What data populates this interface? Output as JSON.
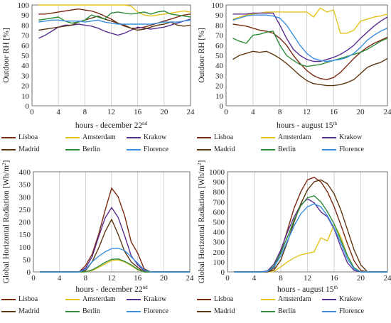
{
  "colors": {
    "Lisboa": "#7b2a12",
    "Amsterdam": "#e3c31b",
    "Krakow": "#5a2d91",
    "Madrid": "#5b3710",
    "Berlin": "#2e8b3a",
    "Florence": "#3a8fe0"
  },
  "legend_entries": [
    "Lisboa",
    "Amsterdam",
    "Krakow",
    "Madrid",
    "Berlin",
    "Florence"
  ],
  "chart_data": [
    {
      "type": "line",
      "xlabel": "hours - december 22",
      "xlabel_sup": "nd",
      "ylabel": "Outdoor RH [%]",
      "xlim": [
        0,
        24
      ],
      "ylim": [
        0,
        100
      ],
      "xticks": [
        "0",
        "4",
        "8",
        "12",
        "16",
        "20",
        "24"
      ],
      "yticks": [
        "0",
        "10",
        "20",
        "30",
        "40",
        "50",
        "60",
        "70",
        "80",
        "90",
        "100"
      ],
      "x": [
        1,
        2,
        3,
        4,
        5,
        6,
        7,
        8,
        9,
        10,
        11,
        12,
        13,
        14,
        15,
        16,
        17,
        18,
        19,
        20,
        21,
        22,
        23,
        24
      ],
      "series": [
        {
          "name": "Lisboa",
          "values": [
            91,
            91,
            92,
            93,
            94,
            95,
            96,
            95,
            94,
            92,
            89,
            86,
            82,
            79,
            77,
            77,
            78,
            80,
            82,
            84,
            86,
            88,
            90,
            91
          ]
        },
        {
          "name": "Amsterdam",
          "values": [
            100,
            100,
            100,
            100,
            100,
            100,
            100,
            100,
            100,
            100,
            100,
            100,
            100,
            100,
            99,
            93,
            90,
            89,
            90,
            91,
            92,
            93,
            94,
            93
          ]
        },
        {
          "name": "Krakow",
          "values": [
            67,
            70,
            74,
            78,
            80,
            80,
            81,
            80,
            79,
            77,
            74,
            72,
            70,
            72,
            75,
            78,
            77,
            76,
            77,
            78,
            80,
            82,
            84,
            86
          ]
        },
        {
          "name": "Madrid",
          "values": [
            75,
            76,
            77,
            78,
            79,
            80,
            83,
            85,
            87,
            89,
            86,
            84,
            82,
            80,
            77,
            75,
            76,
            78,
            80,
            81,
            83,
            80,
            79,
            80
          ]
        },
        {
          "name": "Berlin",
          "values": [
            85,
            86,
            87,
            88,
            84,
            82,
            83,
            85,
            90,
            88,
            86,
            92,
            93,
            92,
            91,
            92,
            93,
            91,
            93,
            94,
            91,
            90,
            89,
            88
          ]
        },
        {
          "name": "Florence",
          "values": [
            83,
            84,
            85,
            85,
            84,
            84,
            84,
            83,
            84,
            85,
            83,
            82,
            81,
            81,
            81,
            81,
            81,
            81,
            82,
            83,
            83,
            83,
            84,
            85
          ]
        }
      ]
    },
    {
      "type": "line",
      "xlabel": "hours - august 15",
      "xlabel_sup": "th",
      "ylabel": "Outdoor RH [%]",
      "xlim": [
        0,
        24
      ],
      "ylim": [
        0,
        100
      ],
      "xticks": [
        "0",
        "4",
        "8",
        "12",
        "16",
        "20",
        "24"
      ],
      "yticks": [
        "0",
        "10",
        "20",
        "30",
        "40",
        "50",
        "60",
        "70",
        "80",
        "90",
        "100"
      ],
      "x": [
        1,
        2,
        3,
        4,
        5,
        6,
        7,
        8,
        9,
        10,
        11,
        12,
        13,
        14,
        15,
        16,
        17,
        18,
        19,
        20,
        21,
        22,
        23,
        24
      ],
      "series": [
        {
          "name": "Lisboa",
          "values": [
            81,
            80,
            79,
            77,
            75,
            74,
            72,
            67,
            60,
            50,
            42,
            35,
            30,
            27,
            26,
            28,
            33,
            40,
            47,
            53,
            58,
            62,
            65,
            68
          ]
        },
        {
          "name": "Amsterdam",
          "values": [
            86,
            88,
            90,
            91,
            92,
            93,
            93,
            93,
            93,
            93,
            93,
            93,
            88,
            97,
            93,
            95,
            72,
            72,
            75,
            84,
            86,
            88,
            89,
            91
          ]
        },
        {
          "name": "Krakow",
          "values": [
            91,
            91,
            91,
            92,
            92,
            92,
            92,
            80,
            67,
            56,
            50,
            46,
            44,
            44,
            46,
            48,
            51,
            55,
            60,
            67,
            73,
            79,
            84,
            88
          ]
        },
        {
          "name": "Madrid",
          "values": [
            46,
            50,
            52,
            54,
            53,
            54,
            51,
            47,
            42,
            36,
            30,
            25,
            22,
            21,
            20,
            20,
            21,
            23,
            26,
            32,
            38,
            41,
            43,
            47
          ]
        },
        {
          "name": "Berlin",
          "values": [
            67,
            64,
            62,
            70,
            71,
            73,
            74,
            60,
            50,
            45,
            41,
            39,
            40,
            41,
            43,
            45,
            47,
            49,
            51,
            53,
            56,
            60,
            64,
            67
          ]
        },
        {
          "name": "Florence",
          "values": [
            85,
            87,
            89,
            90,
            90,
            90,
            89,
            87,
            80,
            70,
            60,
            52,
            47,
            45,
            44,
            45,
            46,
            48,
            52,
            58,
            65,
            70,
            74,
            77
          ]
        }
      ]
    },
    {
      "type": "line",
      "xlabel": "hours - december 22",
      "xlabel_sup": "nd",
      "ylabel": "Global Horizontal Radiation [Wh/m",
      "ylabel_sup": "2",
      "ylabel_tail": "]",
      "xlim": [
        0,
        24
      ],
      "ylim": [
        0,
        400
      ],
      "xticks": [
        "0",
        "4",
        "8",
        "12",
        "16",
        "20",
        "24"
      ],
      "yticks": [
        "0",
        "50",
        "100",
        "150",
        "200",
        "250",
        "300",
        "350",
        "400"
      ],
      "x": [
        1,
        2,
        3,
        4,
        5,
        6,
        7,
        8,
        9,
        10,
        11,
        12,
        13,
        14,
        15,
        16,
        17,
        18,
        19,
        20,
        21,
        22,
        23,
        24
      ],
      "series": [
        {
          "name": "Lisboa",
          "values": [
            0,
            0,
            0,
            0,
            0,
            0,
            0,
            25,
            70,
            150,
            245,
            335,
            300,
            225,
            120,
            75,
            12,
            0,
            0,
            0,
            0,
            0,
            0,
            0
          ]
        },
        {
          "name": "Amsterdam",
          "values": [
            0,
            0,
            0,
            0,
            0,
            0,
            0,
            0,
            5,
            18,
            32,
            45,
            48,
            40,
            25,
            8,
            0,
            0,
            0,
            0,
            0,
            0,
            0,
            0
          ]
        },
        {
          "name": "Krakow",
          "values": [
            0,
            0,
            0,
            0,
            0,
            0,
            0,
            15,
            60,
            140,
            215,
            257,
            218,
            145,
            65,
            28,
            5,
            0,
            0,
            0,
            0,
            0,
            0,
            0
          ]
        },
        {
          "name": "Madrid",
          "values": [
            0,
            0,
            0,
            0,
            0,
            0,
            0,
            5,
            40,
            95,
            160,
            210,
            150,
            82,
            40,
            18,
            0,
            0,
            0,
            0,
            0,
            0,
            0,
            0
          ]
        },
        {
          "name": "Berlin",
          "values": [
            0,
            0,
            0,
            0,
            0,
            0,
            0,
            0,
            8,
            22,
            38,
            50,
            52,
            42,
            28,
            10,
            0,
            0,
            0,
            0,
            0,
            0,
            0,
            0
          ]
        },
        {
          "name": "Florence",
          "values": [
            0,
            0,
            0,
            0,
            0,
            0,
            0,
            10,
            40,
            62,
            80,
            93,
            95,
            85,
            60,
            35,
            8,
            0,
            0,
            0,
            0,
            0,
            0,
            0
          ]
        }
      ]
    },
    {
      "type": "line",
      "xlabel": "hours - august 15",
      "xlabel_sup": "th",
      "ylabel": "Global Horizontal Radiation [Wh/m",
      "ylabel_sup": "2",
      "ylabel_tail": "]",
      "xlim": [
        0,
        24
      ],
      "ylim": [
        0,
        1000
      ],
      "xticks": [
        "0",
        "4",
        "8",
        "12",
        "16",
        "20",
        "24"
      ],
      "yticks": [
        "0",
        "100",
        "200",
        "300",
        "400",
        "500",
        "600",
        "700",
        "800",
        "900",
        "1000"
      ],
      "x": [
        1,
        2,
        3,
        4,
        5,
        6,
        7,
        8,
        9,
        10,
        11,
        12,
        13,
        14,
        15,
        16,
        17,
        18,
        19,
        20,
        21,
        22,
        23,
        24
      ],
      "series": [
        {
          "name": "Lisboa",
          "values": [
            0,
            0,
            0,
            0,
            0,
            0,
            40,
            200,
            420,
            640,
            800,
            920,
            945,
            900,
            800,
            650,
            470,
            280,
            110,
            15,
            0,
            0,
            0,
            0
          ]
        },
        {
          "name": "Amsterdam",
          "values": [
            0,
            0,
            0,
            0,
            0,
            0,
            5,
            50,
            100,
            140,
            170,
            185,
            200,
            340,
            310,
            475,
            350,
            160,
            40,
            0,
            0,
            0,
            0,
            0
          ]
        },
        {
          "name": "Krakow",
          "values": [
            0,
            0,
            0,
            0,
            0,
            10,
            80,
            220,
            400,
            550,
            670,
            730,
            690,
            600,
            550,
            430,
            250,
            90,
            15,
            0,
            0,
            0,
            0,
            0
          ]
        },
        {
          "name": "Madrid",
          "values": [
            0,
            0,
            0,
            0,
            0,
            0,
            20,
            120,
            300,
            500,
            680,
            820,
            900,
            920,
            880,
            780,
            620,
            420,
            220,
            70,
            0,
            0,
            0,
            0
          ]
        },
        {
          "name": "Berlin",
          "values": [
            0,
            0,
            0,
            0,
            0,
            5,
            60,
            190,
            350,
            520,
            660,
            740,
            760,
            700,
            600,
            480,
            320,
            160,
            40,
            0,
            0,
            0,
            0,
            0
          ]
        },
        {
          "name": "Florence",
          "values": [
            0,
            0,
            0,
            0,
            0,
            5,
            50,
            160,
            310,
            460,
            580,
            650,
            680,
            650,
            560,
            440,
            290,
            130,
            30,
            0,
            0,
            0,
            0,
            0
          ]
        }
      ]
    }
  ]
}
